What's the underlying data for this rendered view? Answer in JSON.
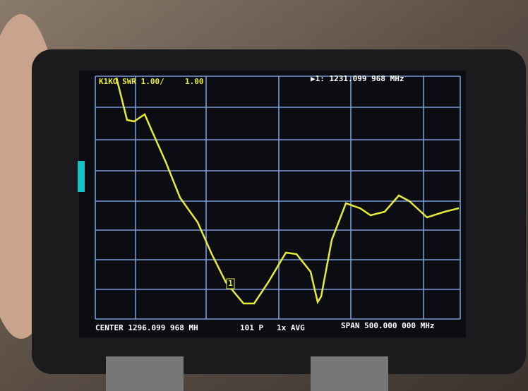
{
  "screen": {
    "header_left": "K1KO SWR 1.00/",
    "header_scale": "1.00",
    "marker_readout": "▶1: 1231.099 968 MHz",
    "marker_label": "1",
    "footer_center": "CENTER 1296.099 968 MH",
    "footer_points": "101 P",
    "footer_avg": "1x AVG",
    "footer_span": "SPAN 500.000 000 MHz"
  }
}
